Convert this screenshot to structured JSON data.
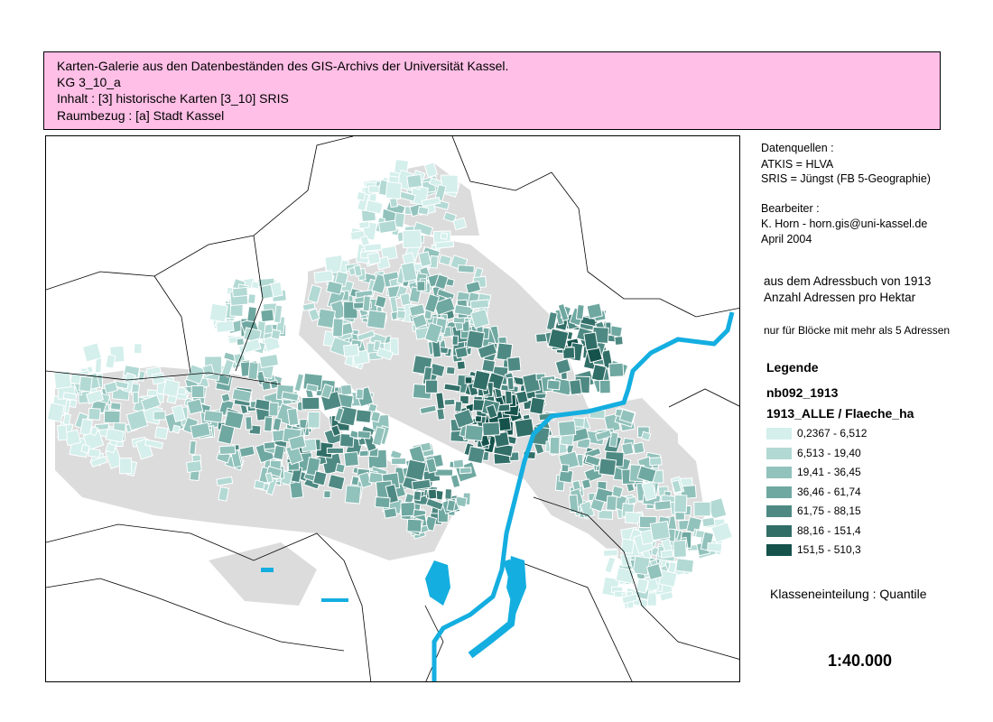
{
  "header": {
    "lines": [
      "Karten-Galerie aus den Datenbeständen des GIS-Archivs der Universität Kassel.",
      "KG 3_10_a",
      "Inhalt : [3] historische Karten  [3_10] SRIS",
      "Raumbezug : [a] Stadt Kassel"
    ]
  },
  "sources": {
    "title": "Datenquellen :",
    "lines": [
      "ATKIS = HLVA",
      "SRIS = Jüngst (FB 5-Geographie)"
    ]
  },
  "editor": {
    "title": "Bearbeiter :",
    "lines": [
      "K. Horn - horn.gis@uni-kassel.de",
      "April 2004"
    ]
  },
  "description": [
    "aus dem Adressbuch von 1913",
    "Anzahl Adressen pro Hektar"
  ],
  "note": "nur für Blöcke mit mehr als 5 Adressen",
  "legend": {
    "title": "Legende",
    "layer": "nb092_1913",
    "field": "1913_ALLE / Flaeche_ha",
    "classes": [
      {
        "label": "0,2367 - 6,512",
        "color": "#d4efec"
      },
      {
        "label": "6,513 - 19,40",
        "color": "#b2d9d4"
      },
      {
        "label": "19,41 - 36,45",
        "color": "#92c2bc"
      },
      {
        "label": "36,46 - 61,74",
        "color": "#6fa8a1"
      },
      {
        "label": "61,75 - 88,15",
        "color": "#4e8a83"
      },
      {
        "label": "88,16 - 151,4",
        "color": "#316e67"
      },
      {
        "label": "151,5 - 510,3",
        "color": "#14524b"
      }
    ]
  },
  "classification": "Klasseneinteilung : Quantile",
  "scale": "1:40.000"
}
